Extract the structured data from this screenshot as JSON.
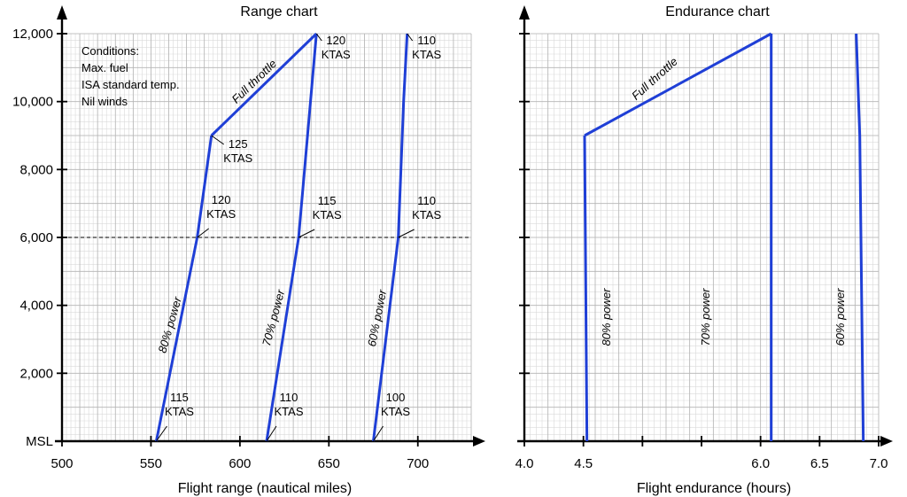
{
  "chart_data": [
    {
      "type": "line",
      "title": "Range chart",
      "xlabel": "Flight range (nautical miles)",
      "ylabel": "",
      "xlim": [
        500,
        730
      ],
      "ylim": [
        0,
        12000
      ],
      "x_ticks": [
        500,
        550,
        600,
        650,
        700
      ],
      "x_tick_labels": [
        "500",
        "550",
        "600",
        "650",
        "700"
      ],
      "y_ticks": [
        0,
        2000,
        4000,
        6000,
        8000,
        10000,
        12000
      ],
      "y_tick_labels": [
        "MSL",
        "2,000",
        "4,000",
        "6,000",
        "8,000",
        "10,000",
        "12,000"
      ],
      "grid": true,
      "conditions": [
        "Conditions:",
        "Max. fuel",
        "ISA standard temp.",
        "Nil winds"
      ],
      "series": [
        {
          "name": "80% power",
          "color": "#1f3fd6",
          "points": [
            [
              553,
              0
            ],
            [
              576,
              6000
            ],
            [
              584,
              9000
            ]
          ]
        },
        {
          "name": "70% power",
          "color": "#1f3fd6",
          "points": [
            [
              615,
              0
            ],
            [
              633,
              6000
            ],
            [
              643,
              12000
            ]
          ]
        },
        {
          "name": "60% power",
          "color": "#1f3fd6",
          "points": [
            [
              675,
              0
            ],
            [
              689,
              6000
            ],
            [
              692,
              10000
            ],
            [
              694,
              12000
            ]
          ]
        },
        {
          "name": "Full throttle",
          "color": "#1f3fd6",
          "points": [
            [
              584,
              9000
            ],
            [
              643,
              12000
            ]
          ]
        }
      ],
      "reference_line": {
        "y": 6000,
        "style": "dashed"
      },
      "annotations": [
        {
          "lines": [
            "115",
            "KTAS"
          ],
          "x": 553,
          "y": 0
        },
        {
          "lines": [
            "110",
            "KTAS"
          ],
          "x": 615,
          "y": 0
        },
        {
          "lines": [
            "100",
            "KTAS"
          ],
          "x": 675,
          "y": 0
        },
        {
          "lines": [
            "120",
            "KTAS"
          ],
          "x": 576,
          "y": 6000
        },
        {
          "lines": [
            "115",
            "KTAS"
          ],
          "x": 633,
          "y": 6000
        },
        {
          "lines": [
            "110",
            "KTAS"
          ],
          "x": 689,
          "y": 6000
        },
        {
          "lines": [
            "125",
            "KTAS"
          ],
          "x": 584,
          "y": 9000
        },
        {
          "lines": [
            "120",
            "KTAS"
          ],
          "x": 643,
          "y": 12000
        },
        {
          "lines": [
            "110",
            "KTAS"
          ],
          "x": 694,
          "y": 12000
        }
      ]
    },
    {
      "type": "line",
      "title": "Endurance chart",
      "xlabel": "Flight endurance (hours)",
      "ylabel": "",
      "xlim": [
        4.0,
        7.0
      ],
      "ylim": [
        0,
        12000
      ],
      "x_ticks": [
        4.0,
        4.5,
        5.0,
        5.5,
        6.0,
        6.5,
        7.0
      ],
      "x_tick_labels": [
        "4.0",
        "4.5",
        "6.0",
        "6.5",
        "7.0"
      ],
      "x_tick_label_values": [
        4.0,
        4.5,
        6.0,
        6.5,
        7.0
      ],
      "grid": true,
      "series": [
        {
          "name": "80% power",
          "color": "#1f3fd6",
          "points": [
            [
              4.53,
              0
            ],
            [
              4.51,
              9000
            ]
          ]
        },
        {
          "name": "70% power",
          "color": "#1f3fd6",
          "points": [
            [
              6.09,
              0
            ],
            [
              6.09,
              12000
            ]
          ]
        },
        {
          "name": "60% power",
          "color": "#1f3fd6",
          "points": [
            [
              6.87,
              0
            ],
            [
              6.84,
              9000
            ],
            [
              6.81,
              12000
            ]
          ]
        },
        {
          "name": "Full throttle",
          "color": "#1f3fd6",
          "points": [
            [
              4.51,
              9000
            ],
            [
              6.09,
              12000
            ]
          ]
        }
      ]
    }
  ]
}
